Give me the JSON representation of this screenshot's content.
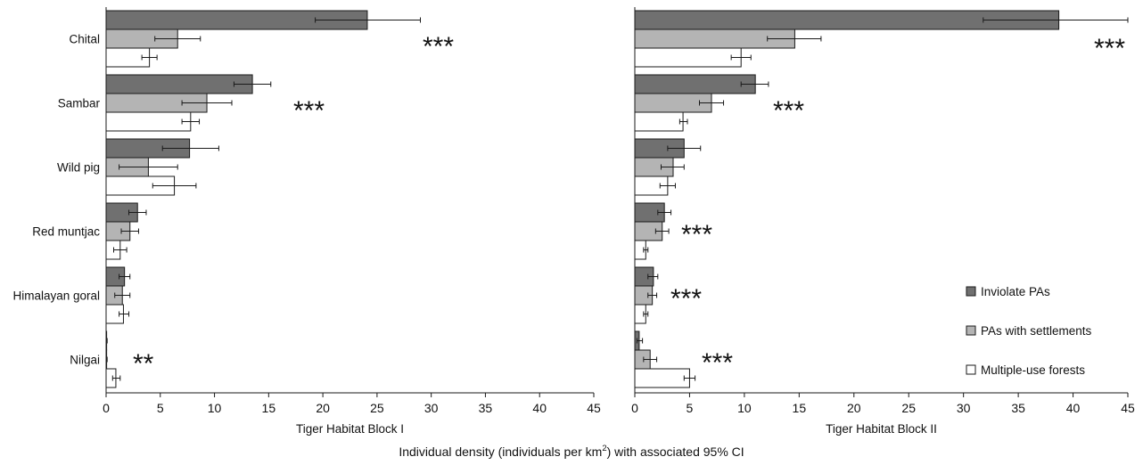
{
  "chart_data": [
    {
      "type": "bar",
      "orientation": "horizontal",
      "xlabel": "Tiger Habitat Block I",
      "xlim": [
        0,
        45
      ],
      "xticks": [
        0,
        5,
        10,
        15,
        20,
        25,
        30,
        35,
        40,
        45
      ],
      "categories": [
        "Chital",
        "Sambar",
        "Wild pig",
        "Red muntjac",
        "Himalayan goral",
        "Nilgai"
      ],
      "series": [
        {
          "name": "Inviolate PAs",
          "color": "#707070",
          "values": [
            24.1,
            13.5,
            7.7,
            2.9,
            1.7,
            0.05
          ],
          "ci_low": [
            19.3,
            11.8,
            5.2,
            2.1,
            1.2,
            0.0
          ],
          "ci_high": [
            29.0,
            15.2,
            10.4,
            3.7,
            2.2,
            0.1
          ]
        },
        {
          "name": "PAs with settlements",
          "color": "#b4b4b4",
          "values": [
            6.6,
            9.3,
            3.9,
            2.2,
            1.5,
            0.05
          ],
          "ci_low": [
            4.5,
            7.0,
            1.2,
            1.4,
            0.8,
            0.0
          ],
          "ci_high": [
            8.7,
            11.6,
            6.6,
            3.0,
            2.2,
            0.1
          ]
        },
        {
          "name": "Multiple-use forests",
          "color": "#ffffff",
          "values": [
            4.0,
            7.8,
            6.3,
            1.3,
            1.6,
            0.9
          ],
          "ci_low": [
            3.3,
            7.0,
            4.3,
            0.7,
            1.2,
            0.6
          ],
          "ci_high": [
            4.7,
            8.6,
            8.3,
            1.9,
            2.1,
            1.3
          ]
        }
      ],
      "annotations": [
        "***",
        "***",
        "",
        "",
        "",
        "**"
      ]
    },
    {
      "type": "bar",
      "orientation": "horizontal",
      "xlabel": "Tiger Habitat Block II",
      "xlim": [
        0,
        45
      ],
      "xticks": [
        0,
        5,
        10,
        15,
        20,
        25,
        30,
        35,
        40,
        45
      ],
      "categories": [
        "Chital",
        "Sambar",
        "Wild pig",
        "Red muntjac",
        "Himalayan goral",
        "Nilgai"
      ],
      "series": [
        {
          "name": "Inviolate PAs",
          "color": "#707070",
          "values": [
            38.7,
            11.0,
            4.5,
            2.7,
            1.7,
            0.4
          ],
          "ci_low": [
            31.8,
            9.7,
            3.0,
            2.1,
            1.2,
            0.2
          ],
          "ci_high": [
            45.0,
            12.2,
            6.0,
            3.3,
            2.1,
            0.7
          ]
        },
        {
          "name": "PAs with settlements",
          "color": "#b4b4b4",
          "values": [
            14.6,
            7.0,
            3.5,
            2.5,
            1.6,
            1.4
          ],
          "ci_low": [
            12.1,
            5.9,
            2.4,
            1.9,
            1.2,
            0.8
          ],
          "ci_high": [
            17.0,
            8.1,
            4.5,
            3.1,
            2.0,
            2.0
          ]
        },
        {
          "name": "Multiple-use forests",
          "color": "#ffffff",
          "values": [
            9.7,
            4.4,
            3.0,
            1.0,
            1.0,
            5.0
          ],
          "ci_low": [
            8.8,
            4.1,
            2.3,
            0.8,
            0.8,
            4.5
          ],
          "ci_high": [
            10.6,
            4.8,
            3.7,
            1.2,
            1.2,
            5.5
          ]
        }
      ],
      "annotations": [
        "***",
        "***",
        "",
        "***",
        "***",
        "***"
      ]
    }
  ],
  "legend": {
    "placement": "bottom-right",
    "entries": [
      {
        "label": "Inviolate PAs",
        "color": "#707070"
      },
      {
        "label": "PAs with settlements",
        "color": "#b4b4b4"
      },
      {
        "label": "Multiple-use forests",
        "color": "#ffffff"
      }
    ]
  },
  "overall_xlabel": {
    "before": "Individual density (individuals per km",
    "superscript": "2",
    "after": ") with associated 95% CI"
  }
}
